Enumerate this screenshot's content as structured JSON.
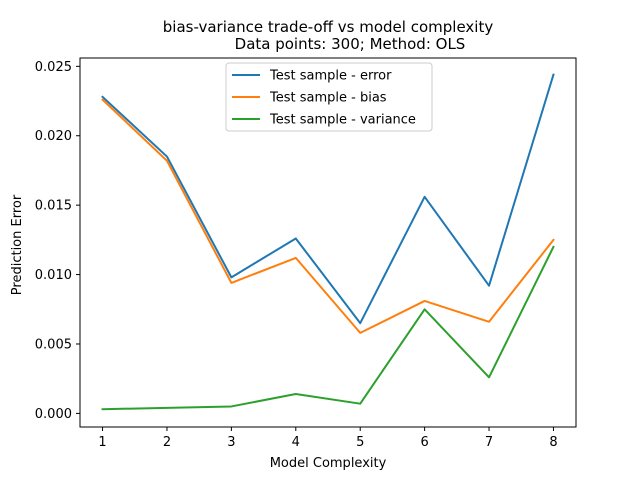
{
  "chart_data": {
    "type": "line",
    "title": "bias-variance trade-off vs model complexity",
    "subtitle": "Data points: 300; Method: OLS",
    "xlabel": "Model Complexity",
    "ylabel": "Prediction Error",
    "x": [
      1,
      2,
      3,
      4,
      5,
      6,
      7,
      8
    ],
    "xlim": [
      0.65,
      8.35
    ],
    "ylim": [
      -0.00098,
      0.0256
    ],
    "xticks": [
      1,
      2,
      3,
      4,
      5,
      6,
      7,
      8
    ],
    "xtick_labels": [
      "1",
      "2",
      "3",
      "4",
      "5",
      "6",
      "7",
      "8"
    ],
    "yticks": [
      0,
      0.005,
      0.01,
      0.015,
      0.02,
      0.025
    ],
    "ytick_labels": [
      "0.000",
      "0.005",
      "0.010",
      "0.015",
      "0.020",
      "0.025"
    ],
    "grid": false,
    "legend_position": "top-center",
    "series": [
      {
        "name": "Test sample - error",
        "color": "#1f77b4",
        "values": [
          0.0228,
          0.0185,
          0.0098,
          0.0126,
          0.0065,
          0.0156,
          0.0092,
          0.0244
        ]
      },
      {
        "name": "Test sample - bias",
        "color": "#ff7f0e",
        "values": [
          0.0226,
          0.0182,
          0.0094,
          0.0112,
          0.0058,
          0.0081,
          0.0066,
          0.0125
        ]
      },
      {
        "name": "Test sample - variance",
        "color": "#2ca02c",
        "values": [
          0.0003,
          0.0004,
          0.0005,
          0.0014,
          0.0007,
          0.0075,
          0.0026,
          0.012
        ]
      }
    ]
  }
}
